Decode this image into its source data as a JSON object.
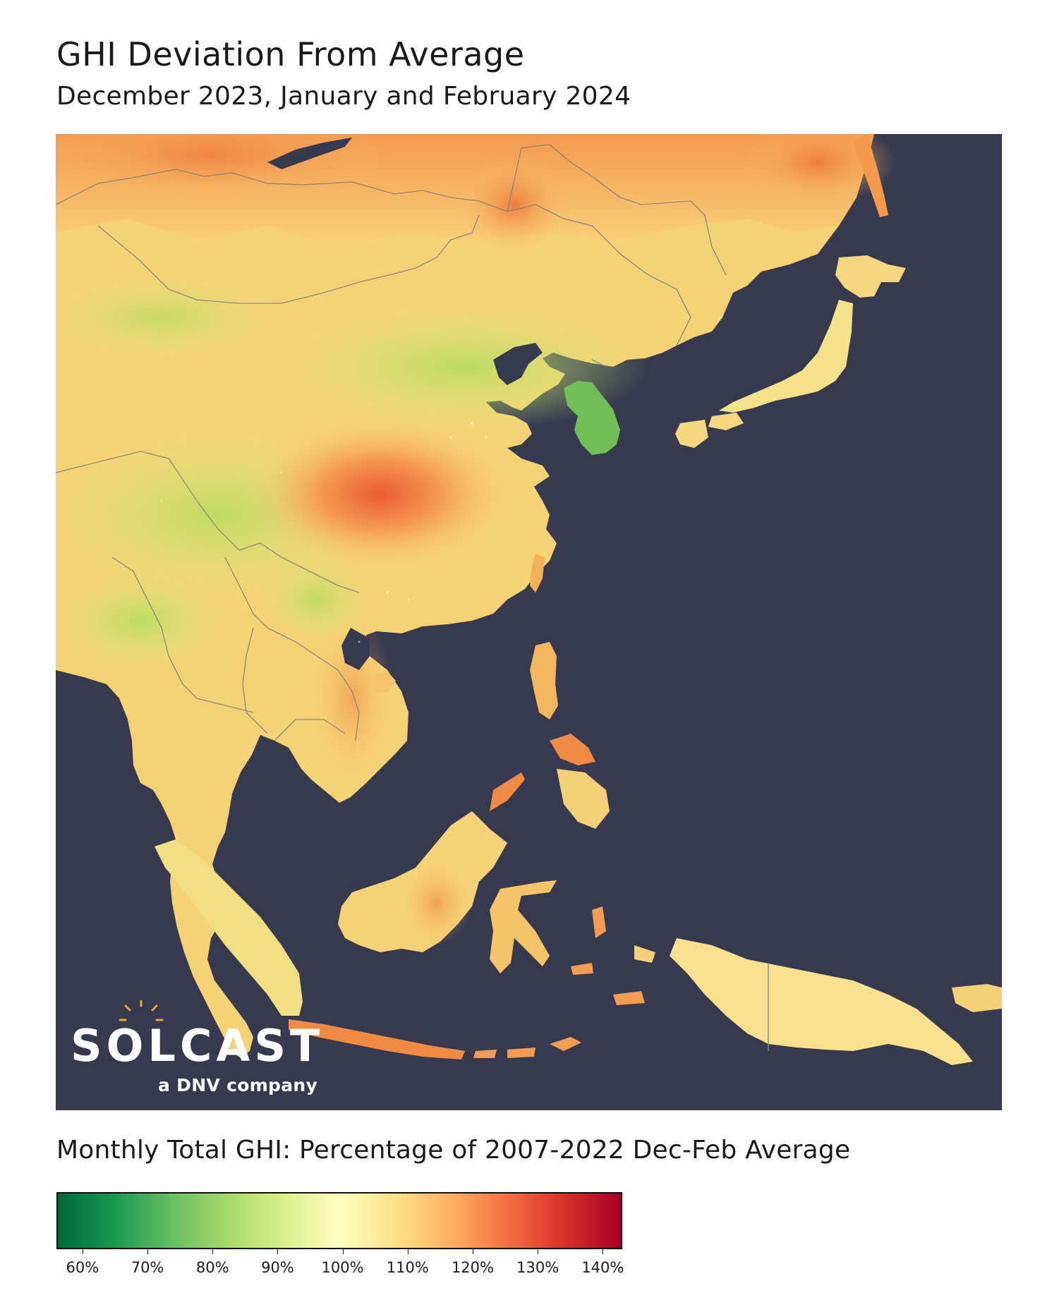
{
  "title": "GHI Deviation From Average",
  "subtitle": "December 2023, January and February 2024",
  "map": {
    "ocean_color": "#373a4f",
    "land_palette": "RdYlGn reversed",
    "highlight_regions": [
      {
        "name": "Korea",
        "level": "~85%"
      },
      {
        "name": "Central China",
        "level": "~125%"
      },
      {
        "name": "Northern Mongolia / Siberia",
        "level": "~115%"
      }
    ]
  },
  "logo": {
    "wordmark": "SOLCAST",
    "tagline": "a DNV company",
    "sun_color": "#f6a02d"
  },
  "legend": {
    "title": "Monthly Total GHI: Percentage of 2007-2022  Dec-Feb Average",
    "tick_labels": [
      "60%",
      "70%",
      "80%",
      "90%",
      "100%",
      "110%",
      "120%",
      "130%",
      "140%"
    ],
    "tick_values": [
      60,
      70,
      80,
      90,
      100,
      110,
      120,
      130,
      140
    ],
    "range": [
      56,
      143
    ],
    "colors": [
      "#006837",
      "#1a9850",
      "#66bd63",
      "#a6d96a",
      "#d9ef8b",
      "#ffffbf",
      "#fee08b",
      "#fdae61",
      "#f46d43",
      "#d73027",
      "#a50026"
    ]
  }
}
